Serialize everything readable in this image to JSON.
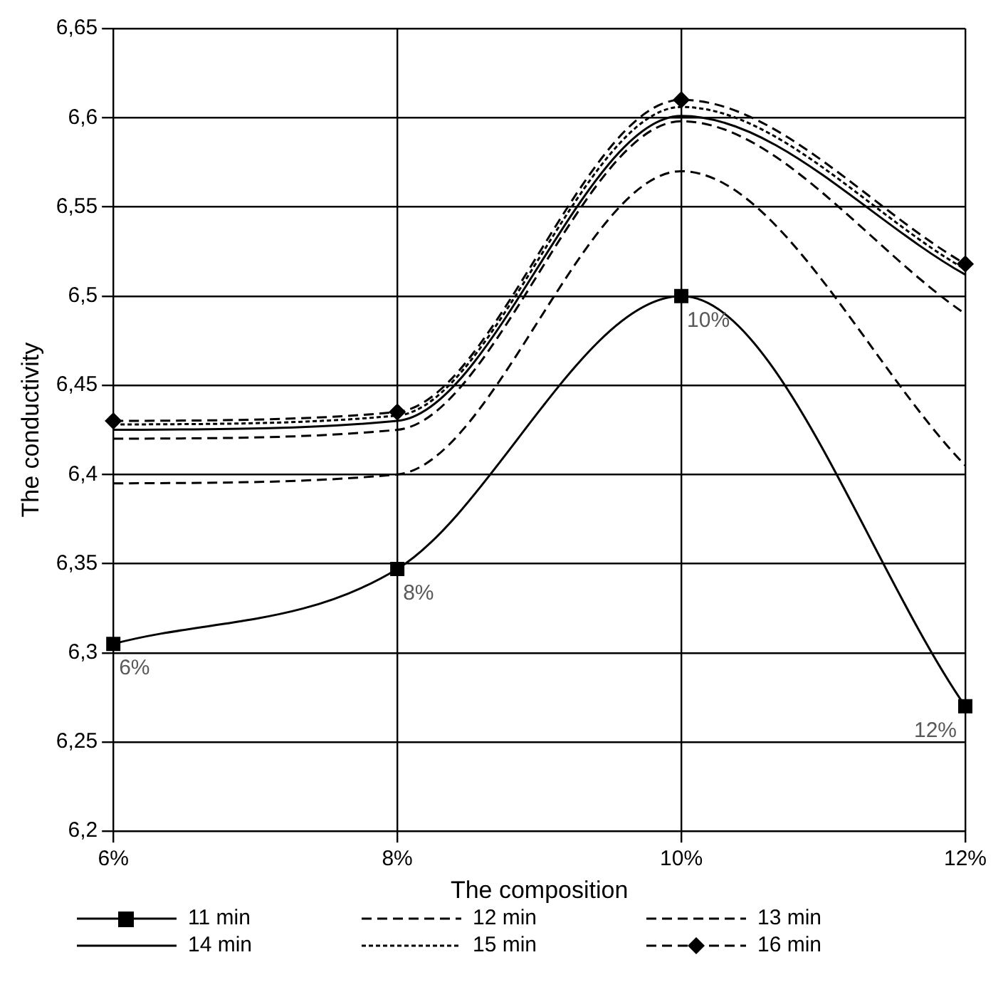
{
  "chart_data": {
    "type": "line",
    "xlabel": "The composition",
    "ylabel": "The conductivity",
    "categories": [
      "6%",
      "8%",
      "10%",
      "12%"
    ],
    "series": [
      {
        "name": "11 min",
        "color": "#000000",
        "values": [
          6.305,
          6.347,
          6.5,
          6.27
        ],
        "marker": "square",
        "line_style": "solid"
      },
      {
        "name": "12 min",
        "color": "#000000",
        "values": [
          6.395,
          6.4,
          6.57,
          6.405
        ],
        "marker": "none",
        "line_style": "dashed"
      },
      {
        "name": "13 min",
        "color": "#000000",
        "values": [
          6.42,
          6.425,
          6.598,
          6.49
        ],
        "marker": "none",
        "line_style": "dashed"
      },
      {
        "name": "14 min",
        "color": "#000000",
        "values": [
          6.425,
          6.43,
          6.601,
          6.512
        ],
        "marker": "none",
        "line_style": "solid"
      },
      {
        "name": "15 min",
        "color": "#000000",
        "values": [
          6.428,
          6.433,
          6.606,
          6.515
        ],
        "marker": "none",
        "line_style": "dotted"
      },
      {
        "name": "16 min",
        "color": "#000000",
        "values": [
          6.43,
          6.435,
          6.61,
          6.518
        ],
        "marker": "diamond",
        "line_style": "dashed"
      }
    ],
    "ylim": [
      6.2,
      6.65
    ],
    "yticks": [
      {
        "value": 6.2,
        "label": "6,2"
      },
      {
        "value": 6.25,
        "label": "6,25"
      },
      {
        "value": 6.3,
        "label": "6,3"
      },
      {
        "value": 6.35,
        "label": "6,35"
      },
      {
        "value": 6.4,
        "label": "6,4"
      },
      {
        "value": 6.45,
        "label": "6,45"
      },
      {
        "value": 6.5,
        "label": "6,5"
      },
      {
        "value": 6.55,
        "label": "6,55"
      },
      {
        "value": 6.6,
        "label": "6,6"
      },
      {
        "value": 6.65,
        "label": "6,65"
      }
    ],
    "annotations": [
      {
        "text": "6%",
        "x": "6%",
        "y": 6.305
      },
      {
        "text": "8%",
        "x": "8%",
        "y": 6.347
      },
      {
        "text": "10%",
        "x": "10%",
        "y": 6.5
      },
      {
        "text": "12%",
        "x": "12%",
        "y": 6.27
      }
    ],
    "grid": true,
    "legend": "bottom"
  }
}
